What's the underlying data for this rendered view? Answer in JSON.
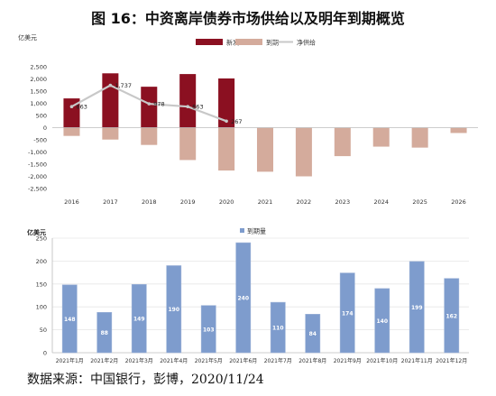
{
  "title": "图 16：中资离岸债券市场供给以及明年到期概览",
  "source": "数据来源：中国银行，彭博，2020/11/24",
  "chart_data": [
    {
      "type": "bar",
      "unit": "亿美元",
      "categories": [
        "2016",
        "2017",
        "2018",
        "2019",
        "2020",
        "2021",
        "2022",
        "2023",
        "2024",
        "2025",
        "2026"
      ],
      "ylim": [
        -2500,
        2500
      ],
      "yticks": [
        -2500,
        -2000,
        -1500,
        -1000,
        -500,
        0,
        500,
        1000,
        1500,
        2000,
        2500
      ],
      "ytick_labels": [
        "-2,500",
        "-2,000",
        "-1,500",
        "-1,000",
        "-500",
        "0",
        "500",
        "1,000",
        "1,500",
        "2,000",
        "2,500"
      ],
      "legend_position": "top-right",
      "series": [
        {
          "name": "新发",
          "type": "bar",
          "color": "#8b1021",
          "values": [
            1200,
            2230,
            1680,
            2200,
            2020,
            null,
            null,
            null,
            null,
            null,
            null
          ]
        },
        {
          "name": "到期",
          "type": "bar",
          "color": "#d4ab9c",
          "values": [
            -340,
            -490,
            -710,
            -1330,
            -1760,
            -1810,
            -2000,
            -1170,
            -780,
            -820,
            -220
          ]
        },
        {
          "name": "净供给",
          "type": "line",
          "color": "#c8c8c8",
          "values": [
            863,
            1737,
            978,
            863,
            267,
            null,
            null,
            null,
            null,
            null,
            null
          ],
          "labels": [
            "863",
            "1,737",
            "978",
            "863",
            "267"
          ]
        }
      ]
    },
    {
      "type": "bar",
      "unit": "亿美元",
      "categories": [
        "2021年1月",
        "2021年2月",
        "2021年3月",
        "2021年4月",
        "2021年5月",
        "2021年6月",
        "2021年7月",
        "2021年8月",
        "2021年9月",
        "2021年10月",
        "2021年11月",
        "2021年12月"
      ],
      "ylim": [
        0,
        250
      ],
      "yticks": [
        0,
        50,
        100,
        150,
        200,
        250
      ],
      "legend_position": "top-center",
      "series": [
        {
          "name": "到期量",
          "color": "#7e9ccd",
          "values": [
            148,
            88,
            149,
            190,
            103,
            240,
            110,
            84,
            174,
            140,
            199,
            162
          ]
        }
      ]
    }
  ]
}
